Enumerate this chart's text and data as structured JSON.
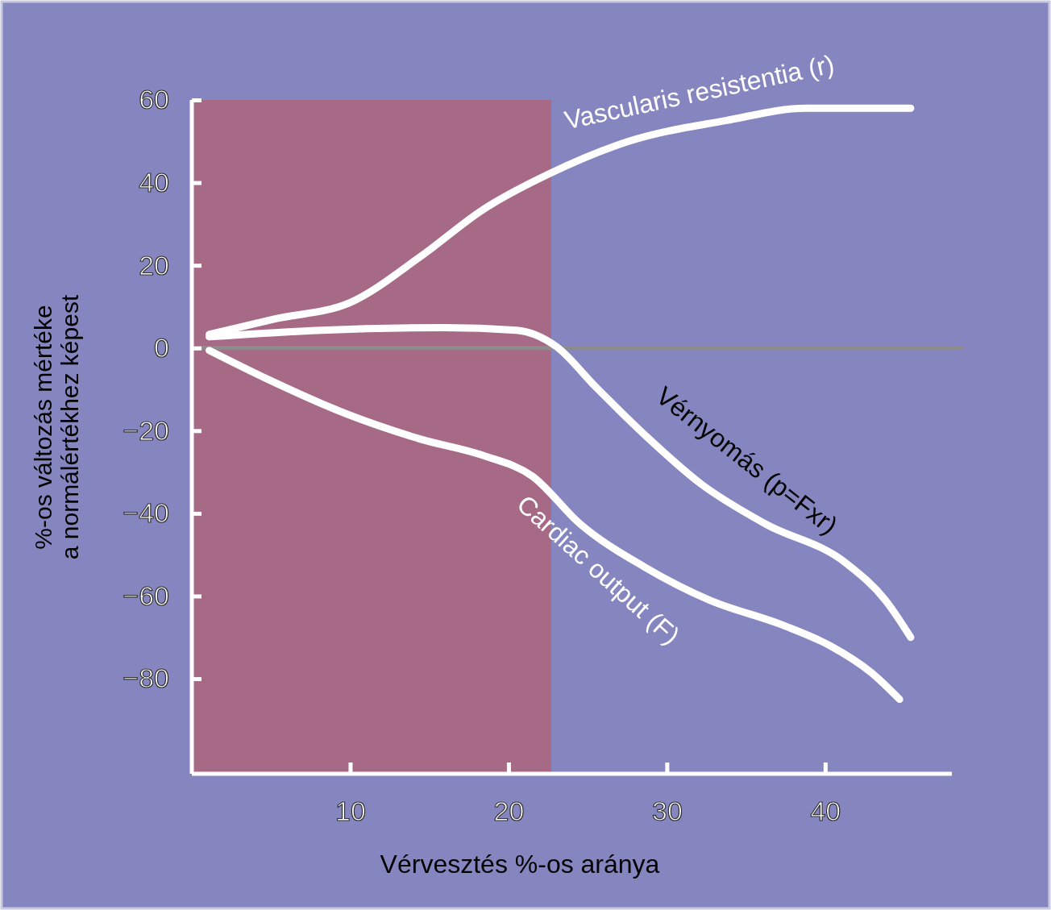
{
  "chart_data": {
    "type": "line",
    "xlabel": "Vérvesztés %-os aránya",
    "ylabel": "%-os változás mértéke\na normálértékhez képest",
    "xlim": [
      0,
      48
    ],
    "ylim": [
      -103,
      60
    ],
    "xticks": [
      10,
      20,
      30,
      40
    ],
    "yticks": [
      60,
      40,
      20,
      0,
      {
        "value": -20,
        "label": "−20"
      },
      {
        "value": -40,
        "label": "−40"
      },
      {
        "value": -60,
        "label": "−60"
      },
      {
        "value": -80,
        "label": "−80"
      }
    ],
    "grid": false,
    "marker": "none",
    "line_style": "solid",
    "bands": [
      {
        "axis": "x",
        "from": 0,
        "to": 22.7,
        "color": "#a66a87"
      }
    ],
    "ref_lines": [
      {
        "axis": "y",
        "value": 0,
        "color": "#8c8c8c"
      }
    ],
    "series": [
      {
        "name": "Vascularis resistentia (r)",
        "color": "#ffffff",
        "x": [
          1.1,
          5.2,
          10,
          14.4,
          18.4,
          22.5,
          27.6,
          33.7,
          38.8,
          45.4
        ],
        "values": [
          3.3,
          7,
          11,
          22,
          33.5,
          42,
          50,
          55,
          58,
          58
        ]
      },
      {
        "name": "Vérnyomás (p=Fxr)",
        "color": "#ffffff",
        "x": [
          1.1,
          8.2,
          15.9,
          20.5,
          23,
          25.5,
          28.6,
          32.2,
          36.2,
          41.3,
          43.8,
          45.4
        ],
        "values": [
          2.7,
          4.3,
          4.9,
          4.3,
          0.4,
          -9.4,
          -21,
          -33,
          -42.5,
          -52,
          -61,
          -70
        ]
      },
      {
        "name": "Cardiac output (F)",
        "color": "#ffffff",
        "x": [
          1.1,
          4.7,
          9.8,
          14.4,
          18.4,
          21.5,
          24.5,
          28.6,
          32.7,
          37.3,
          40.3,
          42.9,
          44.7
        ],
        "values": [
          -0.6,
          -7.4,
          -16,
          -22,
          -26,
          -31,
          -42.5,
          -53,
          -61,
          -67,
          -72,
          -78.5,
          -85
        ]
      }
    ]
  }
}
